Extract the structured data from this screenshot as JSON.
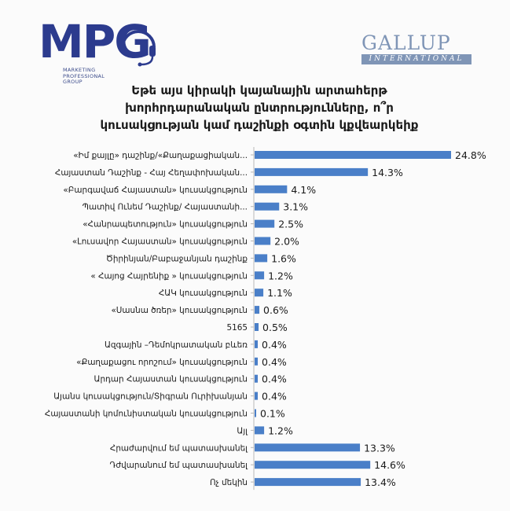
{
  "header": {
    "mpg_logo_text": "MPG",
    "mpg_subtitle": "MARKETING PROFESSIONAL GROUP",
    "gallup_name": "GALLUP",
    "gallup_sub": "INTERNATIONAL"
  },
  "chart_data": {
    "type": "bar",
    "orientation": "horizontal",
    "title_lines": [
      "Եթե այս կիրակի կայանային արտահերթ",
      "խորհրդարանական ընտրությունները, ո՞ր",
      "կուսակցության կամ դաշինքի օգտին կքվեարկեիք"
    ],
    "categories": [
      "«Իմ քայլը» դաշինք/«Քաղաքացիական...",
      "Հայաստան Դաշինք - Հայ Հեղափոխական...",
      "«Բարգավաճ Հայաստան» կուսակցություն",
      "Պատիվ Ունեմ Դաշինք/ Հայաստանի...",
      "«Հանրապետություն» կուսակցություն",
      "«Լուսավոր Հայաստան» կուսակցություն",
      "Ծիրինյան/Բաբաջանյան դաշինք",
      "« Հայոց Հայրենիք » կուսակցություն",
      "ՀԱԿ կուսակցություն",
      "«Սասնա ծռեր» կուսակցություն",
      "5165",
      "Ազգային –Դեմոկրատական բևեռ",
      "«Քաղաքացու որոշում» կուսակցություն",
      "Արդար Հայաստան կուսակցություն",
      "Այանս կուսակցություն/Տիգրան Ուրիխանյան",
      "Հայաստանի կոմունիստական կուսակցություն",
      "Այլ",
      "Հրաժարվում եմ պատասխանել",
      "Դժվարանում եմ պատասխանել",
      "Ոչ մեկին"
    ],
    "values": [
      24.8,
      14.3,
      4.1,
      3.1,
      2.5,
      2.0,
      1.6,
      1.2,
      1.1,
      0.6,
      0.5,
      0.4,
      0.4,
      0.4,
      0.4,
      0.1,
      1.2,
      13.3,
      14.6,
      13.4
    ],
    "value_labels": [
      "24.8%",
      "14.3%",
      "4.1%",
      "3.1%",
      "2.5%",
      "2.0%",
      "1.6%",
      "1.2%",
      "1.1%",
      "0.6%",
      "0.5%",
      "0.4%",
      "0.4%",
      "0.4%",
      "0.4%",
      "0.1%",
      "1.2%",
      "13.3%",
      "14.6%",
      "13.4%"
    ],
    "xlim": [
      0,
      24.8
    ],
    "bar_color": "#4a7fc8",
    "axis_color": "#b8b8b8",
    "grid": false,
    "legend": "none"
  }
}
